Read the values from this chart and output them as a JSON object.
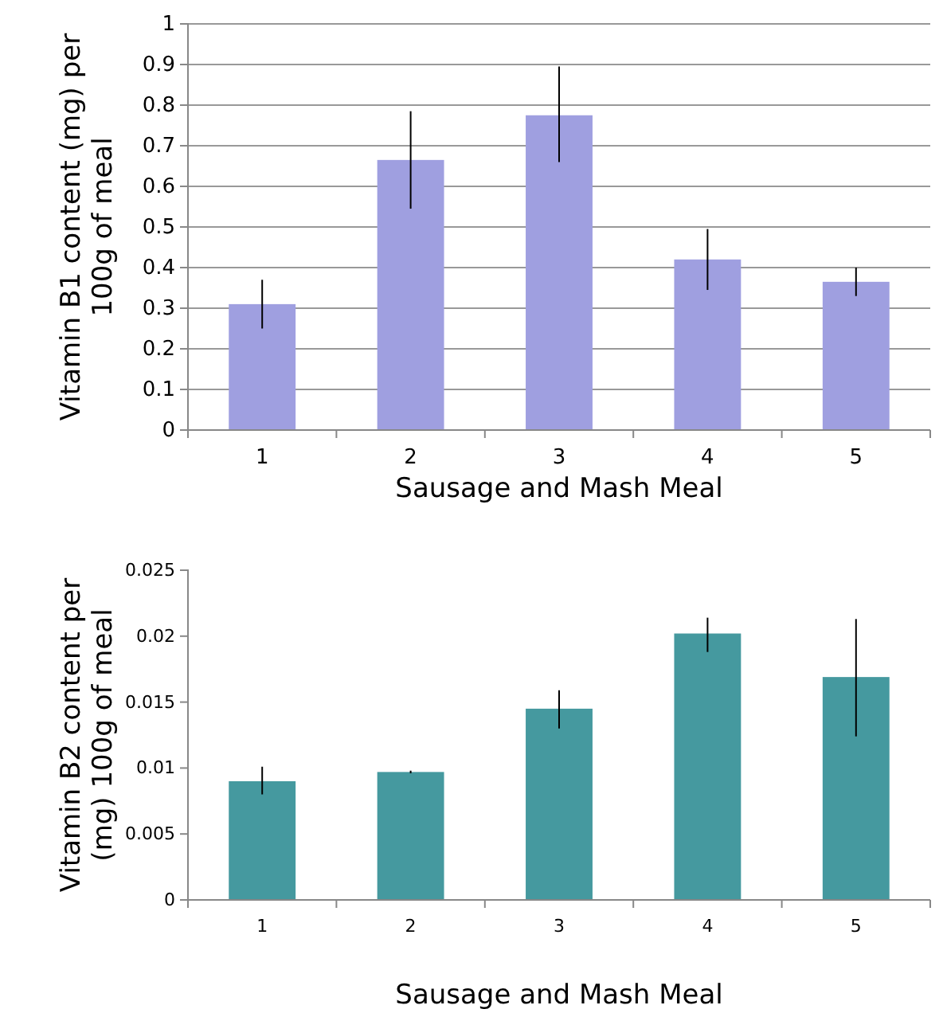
{
  "chart_data": [
    {
      "type": "bar",
      "xlabel": "Sausage and Mash Meal",
      "ylabel": "Vitamin B1 content (mg) per 100g of meal",
      "categories": [
        "1",
        "2",
        "3",
        "4",
        "5"
      ],
      "values": [
        0.31,
        0.665,
        0.775,
        0.42,
        0.365
      ],
      "errors": [
        [
          0.25,
          0.37
        ],
        [
          0.545,
          0.785
        ],
        [
          0.66,
          0.895
        ],
        [
          0.345,
          0.495
        ],
        [
          0.33,
          0.4
        ]
      ],
      "color": "#9f9fe0",
      "ylim": [
        0,
        1
      ],
      "yticks": [
        0,
        0.1,
        0.2,
        0.3,
        0.4,
        0.5,
        0.6,
        0.7,
        0.8,
        0.9,
        1
      ],
      "grid": "y"
    },
    {
      "type": "bar",
      "xlabel": "Sausage and Mash Meal",
      "ylabel": "Vitamin B2 content per (mg) 100g of meal",
      "categories": [
        "1",
        "2",
        "3",
        "4",
        "5"
      ],
      "values": [
        0.009,
        0.0097,
        0.0145,
        0.0202,
        0.0169
      ],
      "errors": [
        [
          0.008,
          0.0101
        ],
        [
          0.0096,
          0.0098
        ],
        [
          0.013,
          0.0159
        ],
        [
          0.0188,
          0.0214
        ],
        [
          0.0124,
          0.0213
        ]
      ],
      "color": "#45999f",
      "ylim": [
        0,
        0.025
      ],
      "yticks": [
        0,
        0.005,
        0.01,
        0.015,
        0.02,
        0.025
      ],
      "grid": false
    }
  ]
}
